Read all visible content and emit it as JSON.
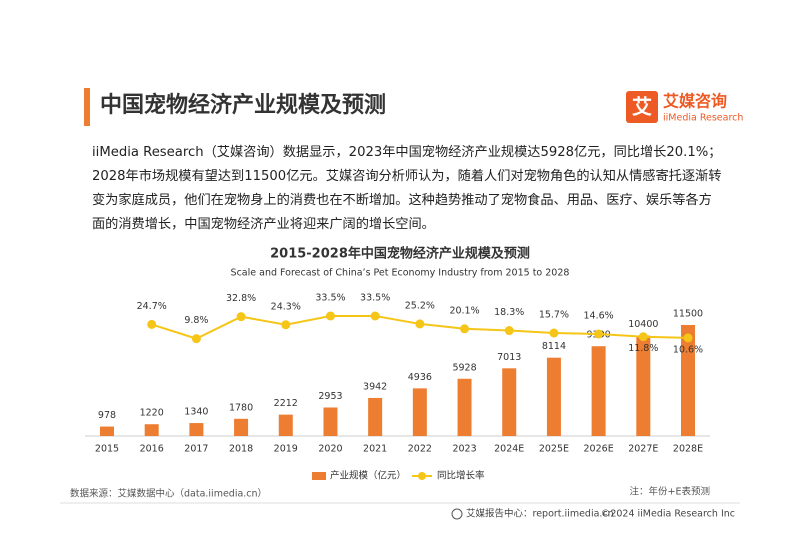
{
  "header": {
    "title": "中国宠物经济产业规模及预测",
    "logo_mark": "艾",
    "logo_name": "艾媒咨询",
    "logo_sub": "iiMedia Research"
  },
  "paragraph": [
    "iiMedia Research（艾媒咨询）数据显示，2023年中国宠物经济产业规模达5928亿元，同比增长20.1%；",
    "2028年市场规模有望达到11500亿元。艾媒咨询分析师认为，随着人们对宠物角色的认知从情感寄托逐渐转",
    "变为家庭成员，他们在宠物身上的消费也在不断增加。这种趋势推动了宠物食品、用品、医疗、娱乐等各方",
    "面的消费增长，中国宠物经济产业将迎来广阔的增长空间。"
  ],
  "chart_data": {
    "type": "bar_line",
    "title": "2015-2028年中国宠物经济产业规模及预测",
    "subtitle": "Scale and Forecast of China’s Pet Economy Industry from 2015 to 2028",
    "categories": [
      "2015",
      "2016",
      "2017",
      "2018",
      "2019",
      "2020",
      "2021",
      "2022",
      "2023",
      "2024E",
      "2025E",
      "2026E",
      "2027E",
      "2028E"
    ],
    "series": [
      {
        "name": "产业规模（亿元）",
        "type": "bar",
        "color": "#ed7d31",
        "values": [
          978,
          1220,
          1340,
          1780,
          2212,
          2953,
          3942,
          4936,
          5928,
          7013,
          8114,
          9300,
          10400,
          11500
        ]
      },
      {
        "name": "同比增长率",
        "type": "line",
        "color": "#f5c518",
        "values": [
          null,
          24.7,
          9.8,
          32.8,
          24.3,
          33.5,
          33.5,
          25.2,
          20.1,
          18.3,
          15.7,
          14.6,
          11.8,
          10.6
        ],
        "value_labels": [
          null,
          "24.7%",
          "9.8%",
          "32.8%",
          "24.3%",
          "33.5%",
          "33.5%",
          "25.2%",
          "20.1%",
          "18.3%",
          "15.7%",
          "14.6%",
          "11.8%",
          "10.6%"
        ]
      }
    ],
    "legend": "bottom"
  },
  "source": "数据来源：艾媒数据中心（data.iimedia.cn）",
  "note": "注：年份+E表预测",
  "footer": {
    "site": "艾媒报告中心：report.iimedia.cn",
    "copyright": "©2024  iiMedia Research  Inc"
  }
}
